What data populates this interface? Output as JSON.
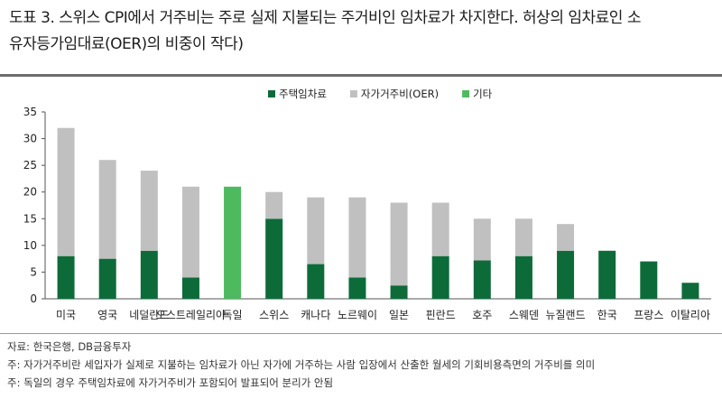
{
  "header": {
    "title_line1": "도표 3. 스위스 CPI에서 거주비는 주로 실제 지불되는 주거비인 임차료가 차지한다. 허상의 임차료인 소",
    "title_line2": "유자등가임대료(OER)의 비중이 작다)"
  },
  "footer": {
    "source": "자료: 한국은행, DB금융투자",
    "note1": "주: 자가거주비란 세입자가 실제로 지불하는 임차료가 아닌 자가에 거주하는 사람 입장에서 산출한 월세의 기회비용측면의 거주비를 의미",
    "note2": "주: 독일의 경우 주택임차료에 자가거주비가 포함되어 발표되어 분리가 안됨"
  },
  "colors": {
    "rent": "#0d6b3a",
    "oer": "#c0c0c0",
    "other": "#4dba5f",
    "axis": "#555555",
    "text": "#222222"
  },
  "chart_data": {
    "type": "bar",
    "stacked": true,
    "categories": [
      "미국",
      "영국",
      "네덜란드",
      "오스트레일리아",
      "독일",
      "스위스",
      "캐나다",
      "노르웨이",
      "일본",
      "핀란드",
      "호주",
      "스웨덴",
      "뉴질랜드",
      "한국",
      "프랑스",
      "이탈리아"
    ],
    "category_labels": [
      "미국",
      "영국",
      "네덜란드",
      "오스트레일리아",
      "독일",
      "스위스",
      "캐나다",
      "노르웨이",
      "일본",
      "핀란드",
      "호주",
      "스웨덴",
      "뉴질랜드",
      "한국",
      "프랑스",
      "이탈리아"
    ],
    "series": [
      {
        "name": "주택임차료",
        "color": "#0d6b3a",
        "values": [
          8,
          7.5,
          9,
          4,
          0,
          15,
          6.5,
          4,
          2.5,
          8,
          7.2,
          8,
          9,
          9,
          7,
          3
        ]
      },
      {
        "name": "자가거주비(OER)",
        "color": "#c0c0c0",
        "values": [
          24,
          18.5,
          15,
          17,
          0,
          5,
          12.5,
          15,
          15.5,
          10,
          7.8,
          7,
          5,
          0,
          0,
          0
        ]
      },
      {
        "name": "기타",
        "color": "#4dba5f",
        "values": [
          0,
          0,
          0,
          0,
          21,
          0,
          0,
          0,
          0,
          0,
          0,
          0,
          0,
          0,
          0,
          0
        ]
      }
    ],
    "ylim": [
      0,
      35
    ],
    "yticks": [
      0,
      5,
      10,
      15,
      20,
      25,
      30,
      35
    ],
    "legend_position": "top",
    "grid": false
  }
}
